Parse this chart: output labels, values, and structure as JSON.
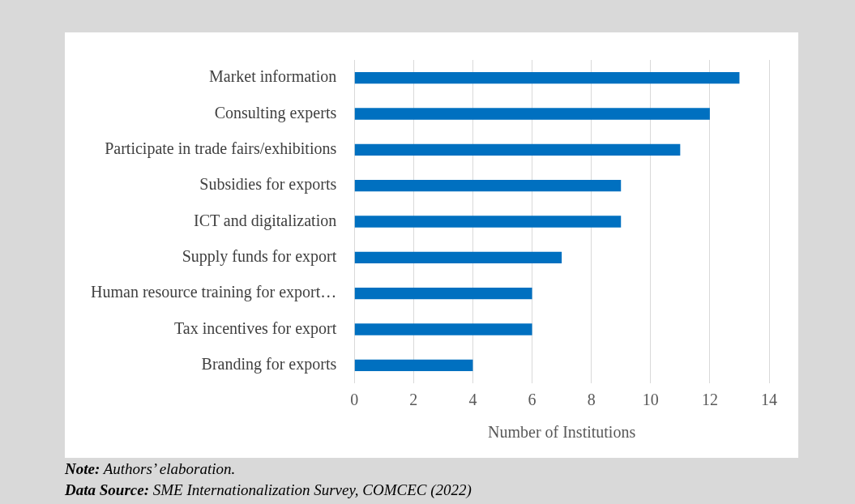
{
  "chart_data": {
    "type": "bar",
    "orientation": "horizontal",
    "xlabel": "Number of Institutions",
    "categories": [
      "Market information",
      "Consulting experts",
      "Participate in trade fairs/exhibitions",
      "Subsidies for exports",
      "ICT and digitalization",
      "Supply funds for export",
      "Human resource training for export…",
      "Tax incentives for export",
      "Branding for exports"
    ],
    "values": [
      13,
      12,
      11,
      9,
      9,
      7,
      6,
      6,
      4
    ],
    "color": "#0070c0",
    "xlim": [
      0,
      14
    ],
    "xticks": [
      0,
      2,
      4,
      6,
      8,
      10,
      12,
      14
    ],
    "grid": "x",
    "legend": false,
    "annotations": [
      "Note: Authors’ elaboration.",
      "Data Source: SME Internationalization Survey, COMCEC (2022)"
    ]
  }
}
